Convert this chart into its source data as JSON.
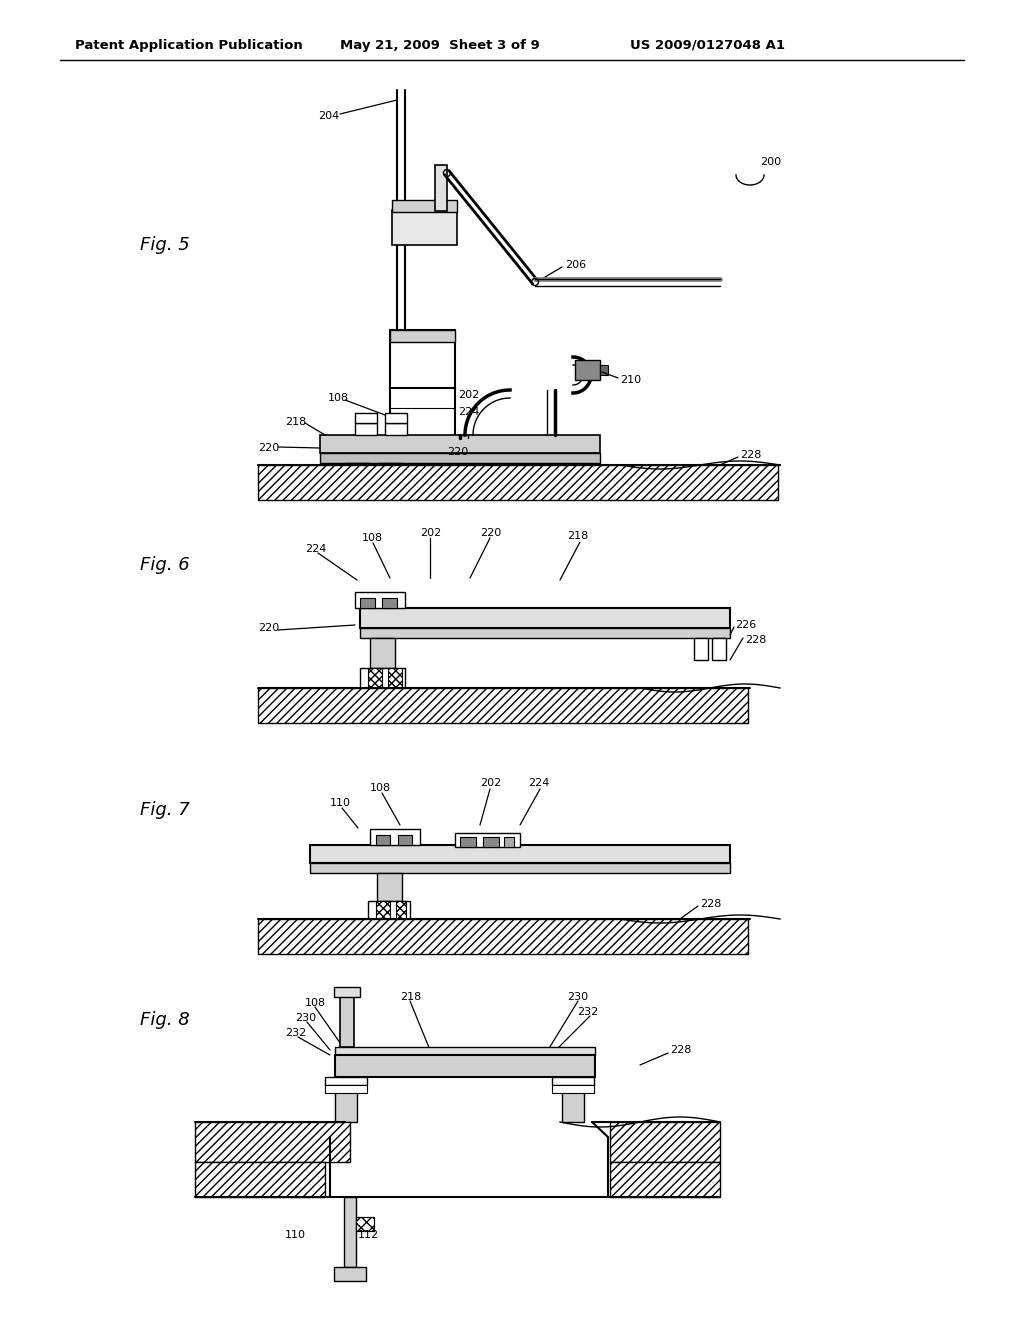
{
  "bg_color": "#ffffff",
  "header_text": "Patent Application Publication",
  "header_date": "May 21, 2009  Sheet 3 of 9",
  "header_patent": "US 2009/0127048 A1",
  "fig5_label": "Fig. 5",
  "fig6_label": "Fig. 6",
  "fig7_label": "Fig. 7",
  "fig8_label": "Fig. 8"
}
